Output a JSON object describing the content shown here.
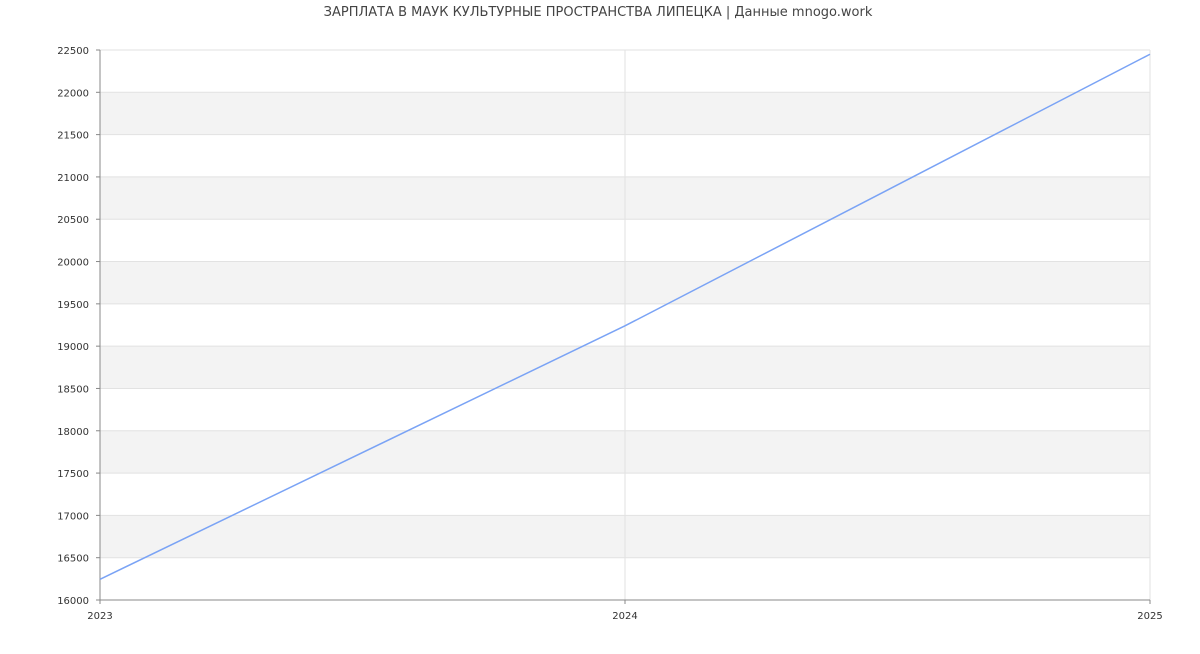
{
  "chart_data": {
    "type": "line",
    "title": "ЗАРПЛАТА В МАУК КУЛЬТУРНЫЕ ПРОСТРАНСТВА ЛИПЕЦКА | Данные mnogo.work",
    "xlabel": "",
    "ylabel": "",
    "x": [
      2023,
      2024,
      2025
    ],
    "x_ticks": [
      "2023",
      "2024",
      "2025"
    ],
    "y_ticks": [
      "16000",
      "16500",
      "17000",
      "17500",
      "18000",
      "18500",
      "19000",
      "19500",
      "20000",
      "20500",
      "21000",
      "21500",
      "22000",
      "22500"
    ],
    "xlim": [
      2023,
      2025
    ],
    "ylim": [
      16000,
      22500
    ],
    "series": [
      {
        "values": [
          16245,
          19240,
          22450
        ],
        "color": "#7aa3f5"
      }
    ],
    "grid": true,
    "band_color": "#f3f3f3"
  }
}
